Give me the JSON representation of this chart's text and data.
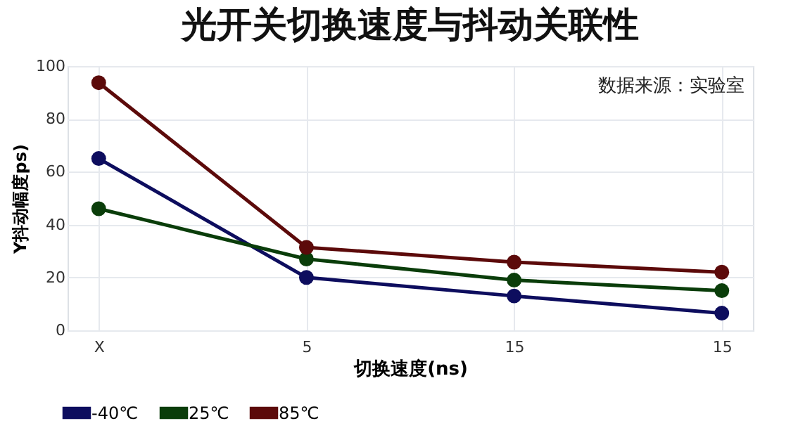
{
  "chart_data": {
    "type": "line",
    "title": "光开关切换速度与抖动关联性",
    "xlabel": "切换速度(ns)",
    "ylabel": "Y抖动幅度ps)",
    "annotations": [
      "数据来源：实验室"
    ],
    "categories": [
      "X",
      "5",
      "15",
      "15"
    ],
    "ylim": [
      0,
      100
    ],
    "yticks": [
      0,
      20,
      40,
      60,
      80,
      100
    ],
    "series": [
      {
        "name": "-40℃",
        "color": "#0d0d5e",
        "values": [
          65,
          20,
          13,
          6.5
        ]
      },
      {
        "name": "25℃",
        "color": "#0a3d0a",
        "values": [
          46,
          27,
          19,
          15
        ]
      },
      {
        "name": "85℃",
        "color": "#5c0a0a",
        "values": [
          93.7,
          31.4,
          25.8,
          22
        ]
      }
    ],
    "grid": true,
    "legend": "bottom",
    "marker": "circle",
    "line_style": "solid"
  }
}
